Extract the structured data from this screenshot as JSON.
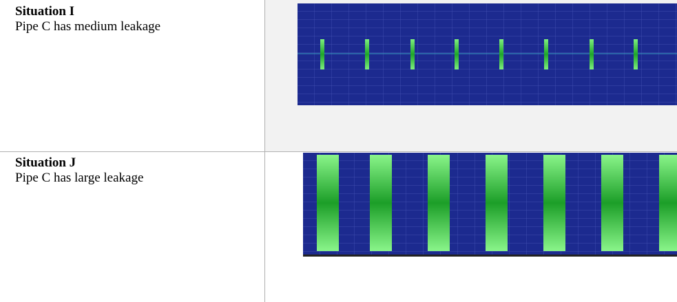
{
  "table": {
    "rows": [
      {
        "title": "Situation I",
        "description": "Pipe C has medium leakage"
      },
      {
        "title": "Situation J",
        "description": "Pipe C has large leakage"
      }
    ]
  }
}
